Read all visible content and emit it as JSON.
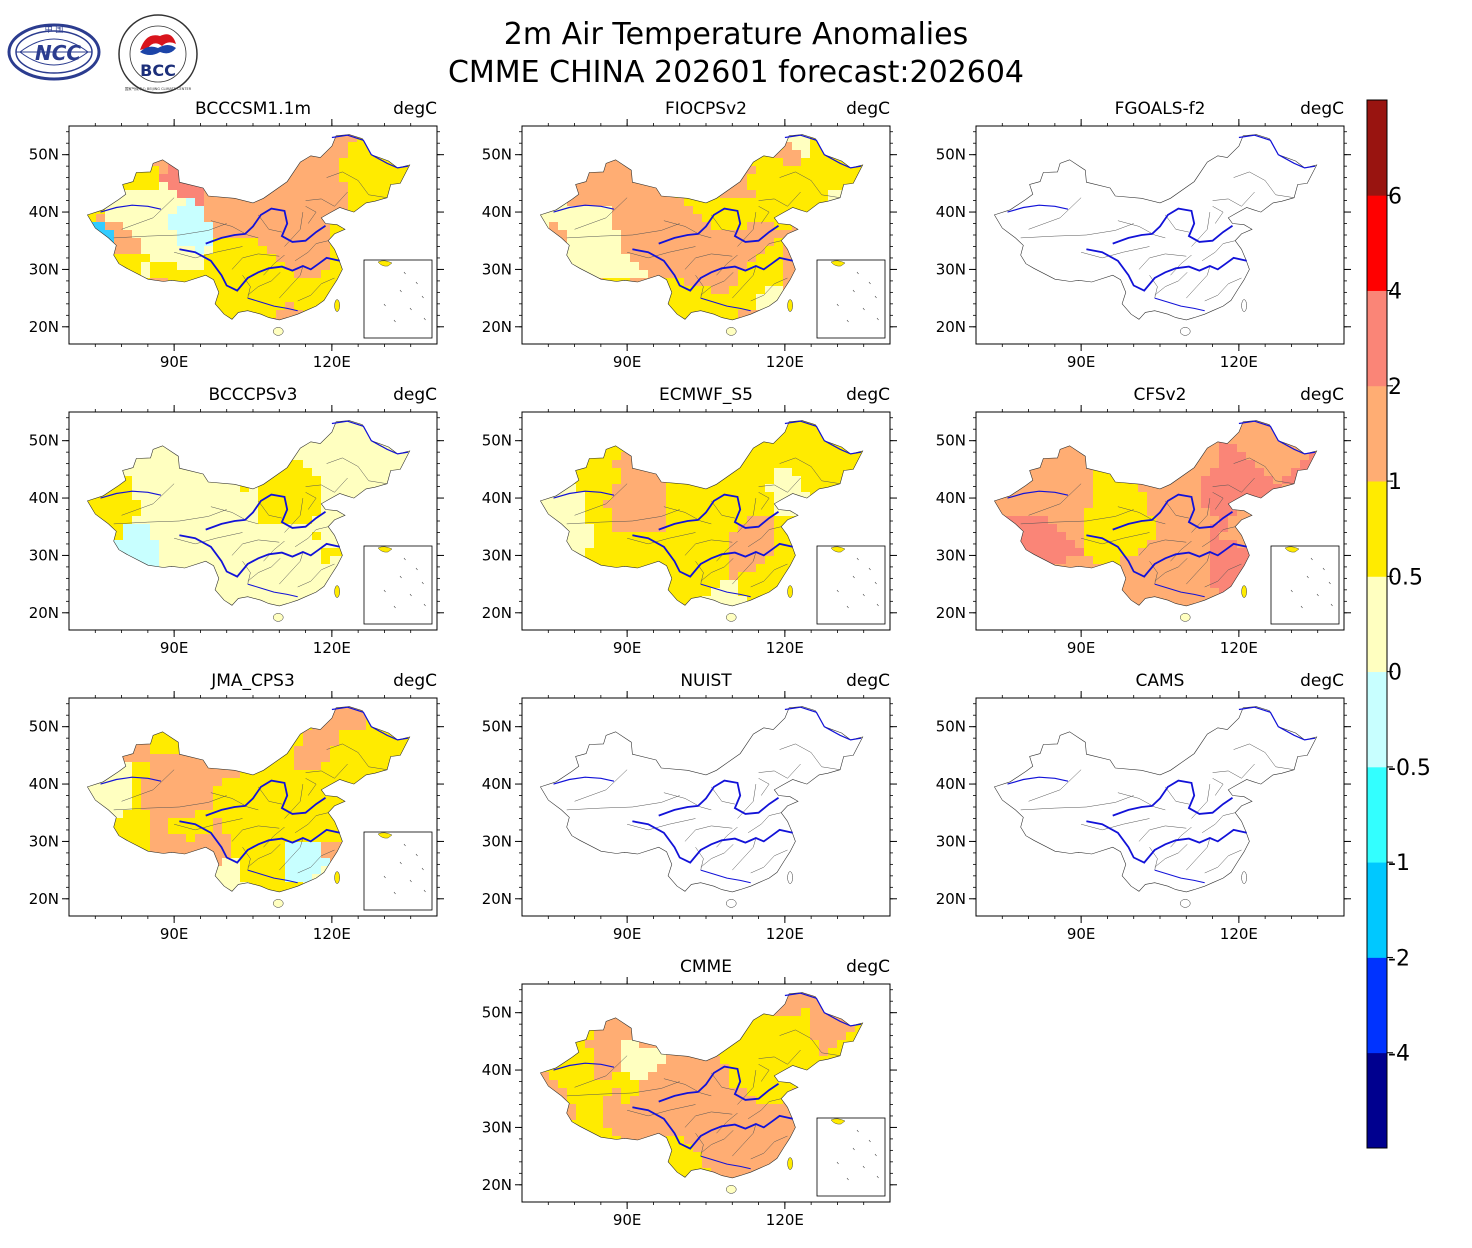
{
  "figure": {
    "title_line1": "2m Air Temperature Anomalies",
    "title_line2": "CMME CHINA 202601 forecast:202604",
    "unit": "degC"
  },
  "logos": [
    {
      "name": "ncc-logo",
      "text": "NCC",
      "top_text": "中 国"
    },
    {
      "name": "bcc-logo",
      "text": "BCC",
      "ring_text": "国家气候中心 BEIJING CLIMATE CENTER"
    }
  ],
  "chart_data": {
    "type": "heatmap",
    "variable": "2m Air Temperature Anomalies",
    "unit": "degC",
    "x_ticks": [
      "90E",
      "120E"
    ],
    "x_tick_values": [
      90,
      120
    ],
    "y_ticks": [
      "20N",
      "30N",
      "40N",
      "50N"
    ],
    "y_tick_values": [
      20,
      30,
      40,
      50
    ],
    "lon_range": [
      70,
      140
    ],
    "lat_range": [
      17,
      55
    ],
    "colorbar": {
      "labels": [
        "-4",
        "-2",
        "-1",
        "-0.5",
        "0",
        "0.5",
        "1",
        "2",
        "4",
        "6"
      ],
      "colors": [
        "#00008f",
        "#0033ff",
        "#00c8ff",
        "#33ffff",
        "#c8ffff",
        "#ffffc0",
        "#ffeb00",
        "#ffad73",
        "#fa8577",
        "#ff0000",
        "#991410"
      ]
    },
    "panels": [
      {
        "name": "BCCCSM1.1m",
        "unit": "degC",
        "base": "#ffad73",
        "fill": [
          [
            "#ffeb00",
            50
          ],
          [
            "#ffad73",
            22
          ],
          [
            "#fa8577",
            8
          ],
          [
            "#ffffc0",
            12
          ],
          [
            "#c8ffff",
            6
          ],
          [
            "#33ccff",
            2
          ]
        ]
      },
      {
        "name": "FIOCPSv2",
        "unit": "degC",
        "base": "#ffeb00",
        "fill": [
          [
            "#ffeb00",
            48
          ],
          [
            "#ffad73",
            38
          ],
          [
            "#fa8577",
            4
          ],
          [
            "#ffffc0",
            8
          ],
          [
            "#c8ffff",
            2
          ]
        ]
      },
      {
        "name": "FGOALS-f2",
        "unit": "degC",
        "base": "none",
        "fill": []
      },
      {
        "name": "BCCCPSv3",
        "unit": "degC",
        "base": "#ffeb00",
        "fill": [
          [
            "#ffeb00",
            55
          ],
          [
            "#ffffc0",
            35
          ],
          [
            "#c8ffff",
            10
          ]
        ]
      },
      {
        "name": "ECMWF_S5",
        "unit": "degC",
        "base": "#ffeb00",
        "fill": [
          [
            "#ffeb00",
            70
          ],
          [
            "#ffad73",
            14
          ],
          [
            "#ffffc0",
            16
          ]
        ]
      },
      {
        "name": "CFSv2",
        "unit": "degC",
        "base": "#ffad73",
        "fill": [
          [
            "#ffad73",
            62
          ],
          [
            "#fa8577",
            26
          ],
          [
            "#ffeb00",
            11
          ],
          [
            "#ff0000",
            1
          ]
        ]
      },
      {
        "name": "JMA_CPS3",
        "unit": "degC",
        "base": "#ffeb00",
        "fill": [
          [
            "#ffeb00",
            45
          ],
          [
            "#ffad73",
            28
          ],
          [
            "#ffffc0",
            20
          ],
          [
            "#c8ffff",
            5
          ],
          [
            "#33ffff",
            2
          ]
        ]
      },
      {
        "name": "NUIST",
        "unit": "degC",
        "base": "none",
        "fill": []
      },
      {
        "name": "CAMS",
        "unit": "degC",
        "base": "none",
        "fill": []
      },
      {
        "name": "CMME",
        "unit": "degC",
        "base": "#ffeb00",
        "fill": [
          [
            "#ffeb00",
            50
          ],
          [
            "#ffad73",
            40
          ],
          [
            "#ffffc0",
            10
          ]
        ]
      }
    ]
  }
}
